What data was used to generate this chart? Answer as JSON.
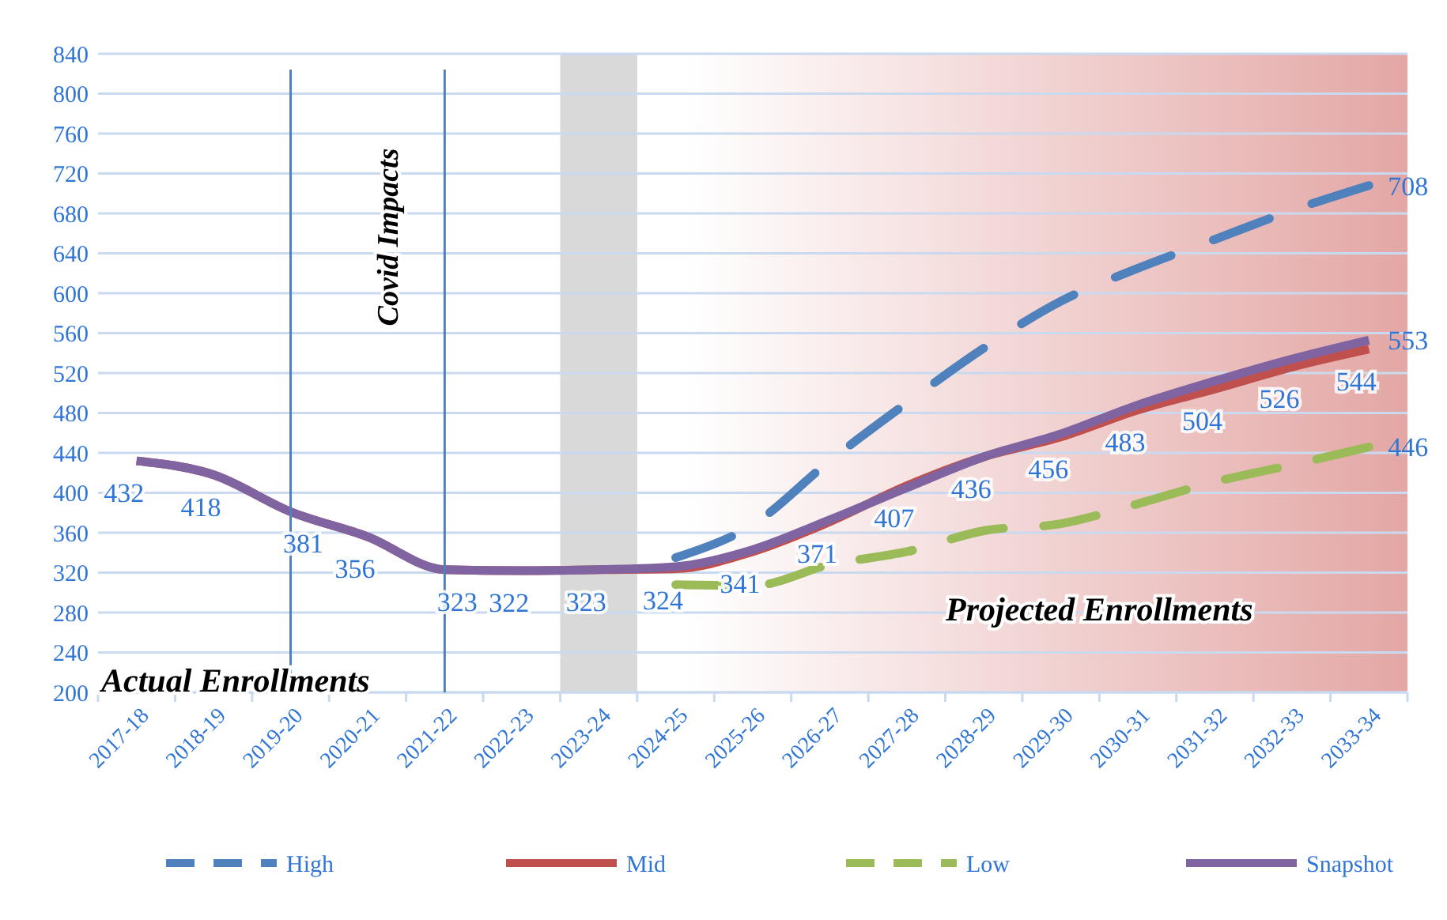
{
  "chart_data": {
    "type": "line",
    "categories": [
      "2017-18",
      "2018-19",
      "2019-20",
      "2020-21",
      "2021-22",
      "2022-23",
      "2023-24",
      "2024-25",
      "2025-26",
      "2026-27",
      "2027-28",
      "2028-29",
      "2029-30",
      "2030-31",
      "2031-32",
      "2032-33",
      "2033-34"
    ],
    "series": [
      {
        "name": "High",
        "color": "#4f81bd",
        "line_style": "dashed",
        "values": [
          null,
          null,
          null,
          null,
          null,
          null,
          null,
          335,
          368,
          432,
          490,
          545,
          592,
          625,
          654,
          683,
          708
        ],
        "value_labels": [
          null,
          null,
          null,
          null,
          null,
          null,
          null,
          null,
          null,
          null,
          null,
          null,
          null,
          null,
          null,
          null,
          "708"
        ]
      },
      {
        "name": "Mid",
        "color": "#c0504d",
        "line_style": "solid",
        "values": [
          432,
          418,
          381,
          356,
          323,
          322,
          323,
          324,
          341,
          371,
          407,
          436,
          456,
          483,
          504,
          526,
          544
        ],
        "value_labels": [
          "432",
          "418",
          "381",
          "356",
          "323",
          "322",
          "323",
          "324",
          "341",
          "371",
          "407",
          "436",
          "456",
          "483",
          "504",
          "526",
          "544"
        ]
      },
      {
        "name": "Low",
        "color": "#9bbb59",
        "line_style": "dashed",
        "values": [
          null,
          null,
          null,
          null,
          null,
          null,
          null,
          308,
          307,
          328,
          341,
          362,
          369,
          389,
          411,
          428,
          446
        ],
        "value_labels": [
          null,
          null,
          null,
          null,
          null,
          null,
          null,
          null,
          null,
          null,
          null,
          null,
          null,
          null,
          null,
          null,
          "446"
        ]
      },
      {
        "name": "Snapshot",
        "color": "#8064a2",
        "line_style": "solid",
        "values": [
          432,
          418,
          381,
          356,
          323,
          322,
          323,
          326,
          343,
          373,
          405,
          436,
          459,
          488,
          512,
          534,
          553
        ],
        "value_labels": [
          null,
          null,
          null,
          null,
          null,
          null,
          null,
          null,
          null,
          null,
          null,
          null,
          null,
          null,
          null,
          null,
          "553"
        ]
      }
    ],
    "ylim": [
      200,
      840
    ],
    "yticks": [
      200,
      240,
      280,
      320,
      360,
      400,
      440,
      480,
      520,
      560,
      600,
      640,
      680,
      720,
      760,
      800,
      840
    ],
    "grid": "y",
    "legend": "bottom",
    "marker": "none",
    "ref_lines": [
      {
        "axis": "x",
        "value": "2019-20",
        "color": "#4f81bd"
      },
      {
        "axis": "x",
        "value": "2021-22",
        "color": "#4f81bd"
      }
    ],
    "bands": [
      {
        "axis": "x",
        "from": "2023-24",
        "to": "2023-24",
        "color": "#d9d9d9"
      }
    ],
    "annotations": [
      {
        "text": "Covid Impacts"
      },
      {
        "text": "Actual Enrollments"
      },
      {
        "text": "Projected Enrollments"
      }
    ]
  }
}
